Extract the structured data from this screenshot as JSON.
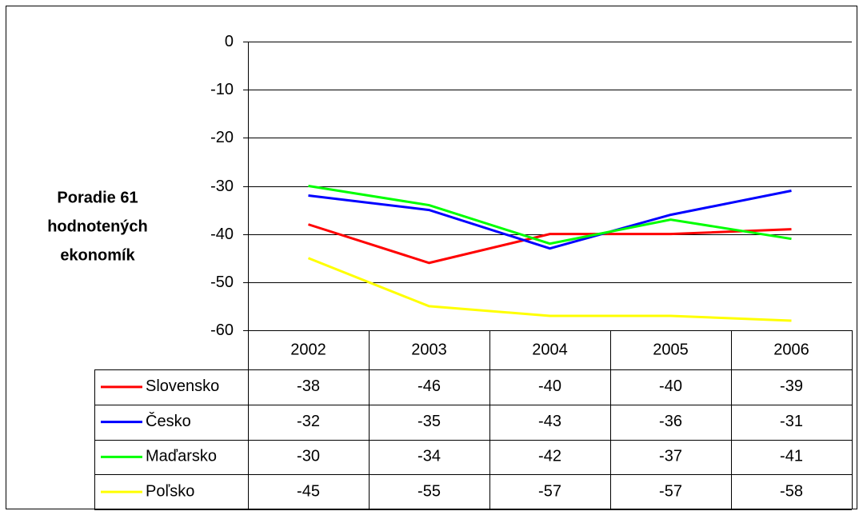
{
  "chart_data": {
    "type": "line",
    "ylabel": [
      "Poradie 61",
      "hodnotených",
      "ekonomík"
    ],
    "categories": [
      "2002",
      "2003",
      "2004",
      "2005",
      "2006"
    ],
    "series": [
      {
        "name": "Slovensko",
        "color": "#ff0000",
        "values": [
          -38,
          -46,
          -40,
          -40,
          -39
        ]
      },
      {
        "name": "Česko",
        "color": "#0000ff",
        "values": [
          -32,
          -35,
          -43,
          -36,
          -31
        ]
      },
      {
        "name": "Maďarsko",
        "color": "#00ff00",
        "values": [
          -30,
          -34,
          -42,
          -37,
          -41
        ]
      },
      {
        "name": "Poľsko",
        "color": "#ffff00",
        "values": [
          -45,
          -55,
          -57,
          -57,
          -58
        ]
      }
    ],
    "ylim": [
      -60,
      0
    ],
    "yticks": [
      0,
      -10,
      -20,
      -30,
      -40,
      -50,
      -60
    ],
    "grid": true,
    "data_table": true
  }
}
